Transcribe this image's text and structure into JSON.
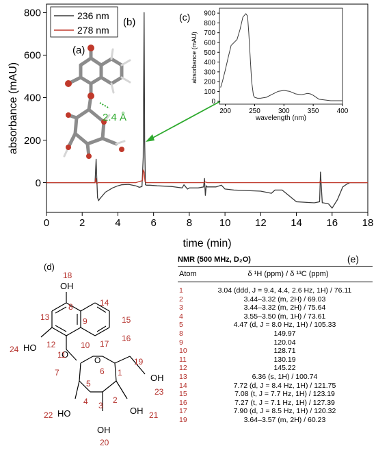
{
  "chart_data": [
    {
      "type": "line",
      "panel_label": "(b)",
      "xlabel": "time (min)",
      "ylabel": "absorbance (mAU)",
      "xlim": [
        0,
        18
      ],
      "ylim": [
        -140,
        840
      ],
      "xticks": [
        "0",
        "2",
        "4",
        "6",
        "8",
        "10",
        "12",
        "14",
        "16",
        "18"
      ],
      "yticks": [
        "0",
        "200",
        "400",
        "600",
        "800"
      ],
      "legend_position": "top-left",
      "series": [
        {
          "name": "236 nm",
          "color": "#3a3a3a",
          "x": [
            0,
            2.72,
            2.78,
            2.82,
            2.86,
            2.92,
            3.0,
            3.3,
            3.7,
            4.0,
            4.2,
            4.6,
            5.0,
            5.2,
            5.35,
            5.42,
            5.47,
            5.5,
            5.54,
            5.6,
            5.8,
            6.2,
            7.0,
            7.6,
            7.7,
            7.9,
            8.0,
            8.5,
            8.8,
            8.85,
            8.9,
            8.95,
            9.0,
            9.5,
            9.8,
            10.0,
            10.5,
            12.0,
            12.6,
            12.8,
            13.2,
            14.0,
            15.0,
            15.3,
            15.35,
            15.45,
            15.5,
            15.8,
            16.0,
            16.3,
            16.6,
            16.8,
            17.0,
            18.0
          ],
          "y": [
            0,
            0,
            110,
            20,
            -70,
            -85,
            -75,
            -45,
            -25,
            -15,
            -10,
            -8,
            -15,
            -22,
            -18,
            120,
            800,
            200,
            -10,
            -12,
            -12,
            -15,
            -18,
            -25,
            -10,
            -30,
            -25,
            -25,
            -20,
            20,
            -60,
            -15,
            -20,
            -20,
            -12,
            -30,
            -35,
            -40,
            -50,
            -35,
            -35,
            -90,
            -95,
            -90,
            50,
            -95,
            -95,
            -100,
            -120,
            -80,
            -20,
            -8,
            0,
            0
          ]
        },
        {
          "name": "278 nm",
          "color": "#c0392b",
          "x": [
            0,
            2.72,
            2.76,
            2.8,
            2.9,
            5.0,
            5.38,
            5.42,
            5.47,
            5.52,
            5.6,
            6.0,
            8.8,
            8.9,
            9.0,
            15.3,
            15.35,
            15.4,
            18.0
          ],
          "y": [
            0,
            0,
            20,
            -5,
            0,
            0,
            10,
            60,
            50,
            5,
            0,
            0,
            0,
            3,
            0,
            0,
            8,
            0,
            0
          ]
        }
      ]
    },
    {
      "type": "line",
      "panel_label": "(c)",
      "xlabel": "wavelength (nm)",
      "ylabel": "absorbance (mAU)",
      "xlim": [
        190,
        400
      ],
      "ylim": [
        -30,
        950
      ],
      "xticks": [
        "200",
        "250",
        "300",
        "350",
        "400"
      ],
      "yticks": [
        "0",
        "100",
        "200",
        "300",
        "400",
        "500",
        "600",
        "700",
        "800",
        "900"
      ],
      "series": [
        {
          "color": "#3a3a3a",
          "x": [
            192,
            195,
            200,
            205,
            210,
            215,
            220,
            225,
            230,
            235,
            238,
            240,
            243,
            245,
            248,
            250,
            255,
            260,
            270,
            280,
            290,
            300,
            310,
            320,
            330,
            340,
            345,
            350,
            360,
            380,
            400
          ],
          "y": [
            140,
            200,
            320,
            450,
            570,
            600,
            630,
            730,
            860,
            895,
            870,
            700,
            400,
            200,
            60,
            40,
            30,
            30,
            40,
            70,
            100,
            110,
            100,
            75,
            65,
            80,
            75,
            60,
            20,
            5,
            5
          ]
        }
      ]
    }
  ],
  "labels": {
    "a": "(a)",
    "distance": "2.4 Å",
    "d": "(d)"
  },
  "structure": {
    "atoms": [
      "18",
      "8",
      "14",
      "13",
      "9",
      "15",
      "24",
      "12",
      "16",
      "11",
      "10",
      "17",
      "7",
      "5",
      "6",
      "1",
      "19",
      "4",
      "2",
      "22",
      "3",
      "21",
      "20",
      "23"
    ],
    "groups": [
      "OH",
      "HO",
      "O",
      "O",
      "HO",
      "OH",
      "OH",
      "OH"
    ]
  },
  "nmr": {
    "title": "NMR (500 MHz, D₂O)",
    "panel_label": "(e)",
    "col_atom": "Atom",
    "col_shift": "δ ¹H (ppm) / δ ¹³C (ppm)",
    "rows": [
      {
        "atom": "1",
        "value": "3.04 (ddd, J = 9.4, 4.4, 2.6 Hz, 1H) / 76.11"
      },
      {
        "atom": "2",
        "value": "3.44–3.32 (m, 2H) / 69.03"
      },
      {
        "atom": "3",
        "value": "3.44–3.32 (m, 2H) / 75.64"
      },
      {
        "atom": "4",
        "value": "3.55–3.50 (m, 1H) / 73.61"
      },
      {
        "atom": "5",
        "value": "4.47 (d, J = 8.0 Hz, 1H) / 105.33"
      },
      {
        "atom": "8",
        "value": "149.97"
      },
      {
        "atom": "9",
        "value": "120.04"
      },
      {
        "atom": "10",
        "value": "128.71"
      },
      {
        "atom": "11",
        "value": "130.19"
      },
      {
        "atom": "12",
        "value": "145.22"
      },
      {
        "atom": "13",
        "value": "6.36 (s, 1H) / 100.74"
      },
      {
        "atom": "14",
        "value": "7.72 (d, J = 8.4 Hz, 1H) / 121.75"
      },
      {
        "atom": "15",
        "value": "7.08 (t, J = 7.7 Hz, 1H) / 123.19"
      },
      {
        "atom": "16",
        "value": "7.27 (t, J = 7.1 Hz, 1H) / 127.39"
      },
      {
        "atom": "17",
        "value": "7.90 (d, J = 8.5 Hz, 1H) / 120.32"
      },
      {
        "atom": "19",
        "value": "3.64–3.57 (m, 2H) / 60.23"
      }
    ]
  }
}
